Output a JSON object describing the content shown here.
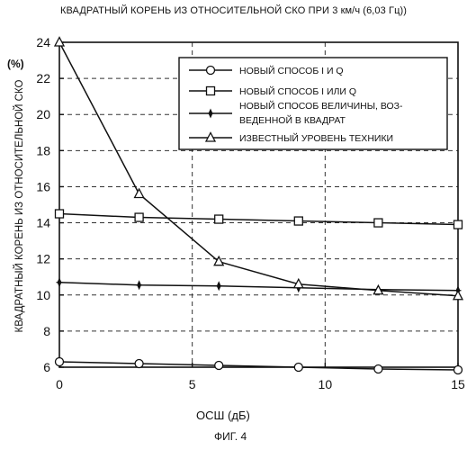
{
  "chart_data": {
    "type": "line",
    "title": "КВАДРАТНЫЙ КОРЕНЬ ИЗ ОТНОСИТЕЛЬНОЙ СКО ПРИ 3 км/ч  (6,03 Гц))",
    "xlabel": "ОСШ  (дБ)",
    "ylabel": "КВАДРАТНЫЙ КОРЕНЬ ИЗ ОТНОСИТЕЛЬНОЙ СКО",
    "yunit": "(%)",
    "caption": "ФИГ. 4",
    "xlim": [
      0,
      15
    ],
    "ylim": [
      6,
      24
    ],
    "xticks": [
      "0",
      "5",
      "10",
      "15"
    ],
    "yticks": [
      "6",
      "8",
      "10",
      "12",
      "14",
      "16",
      "18",
      "20",
      "22",
      "24"
    ],
    "grid": "dashed",
    "legend_position": "top-right",
    "x": [
      0,
      3,
      6,
      9,
      12,
      15
    ],
    "series": [
      {
        "name": "НОВЫЙ СПОСОБ  I И Q",
        "marker": "circle",
        "values": [
          6.3,
          6.2,
          6.1,
          6.0,
          5.9,
          5.85
        ]
      },
      {
        "name": "НОВЫЙ СПОСОБ  I ИЛИ Q",
        "marker": "square",
        "values": [
          14.5,
          14.3,
          14.2,
          14.1,
          14.0,
          13.9
        ]
      },
      {
        "name": "НОВЫЙ СПОСОБ ВЕЛИЧИНЫ, ВОЗ-|ВЕДЕННОЙ В КВАДРАТ",
        "marker": "star",
        "values": [
          10.7,
          10.55,
          10.5,
          10.4,
          10.3,
          10.25
        ]
      },
      {
        "name": "ИЗВЕСТНЫЙ УРОВЕНЬ ТЕХНИКИ",
        "marker": "triangle",
        "values": [
          24.0,
          15.6,
          11.85,
          10.6,
          10.25,
          9.95
        ]
      }
    ]
  }
}
